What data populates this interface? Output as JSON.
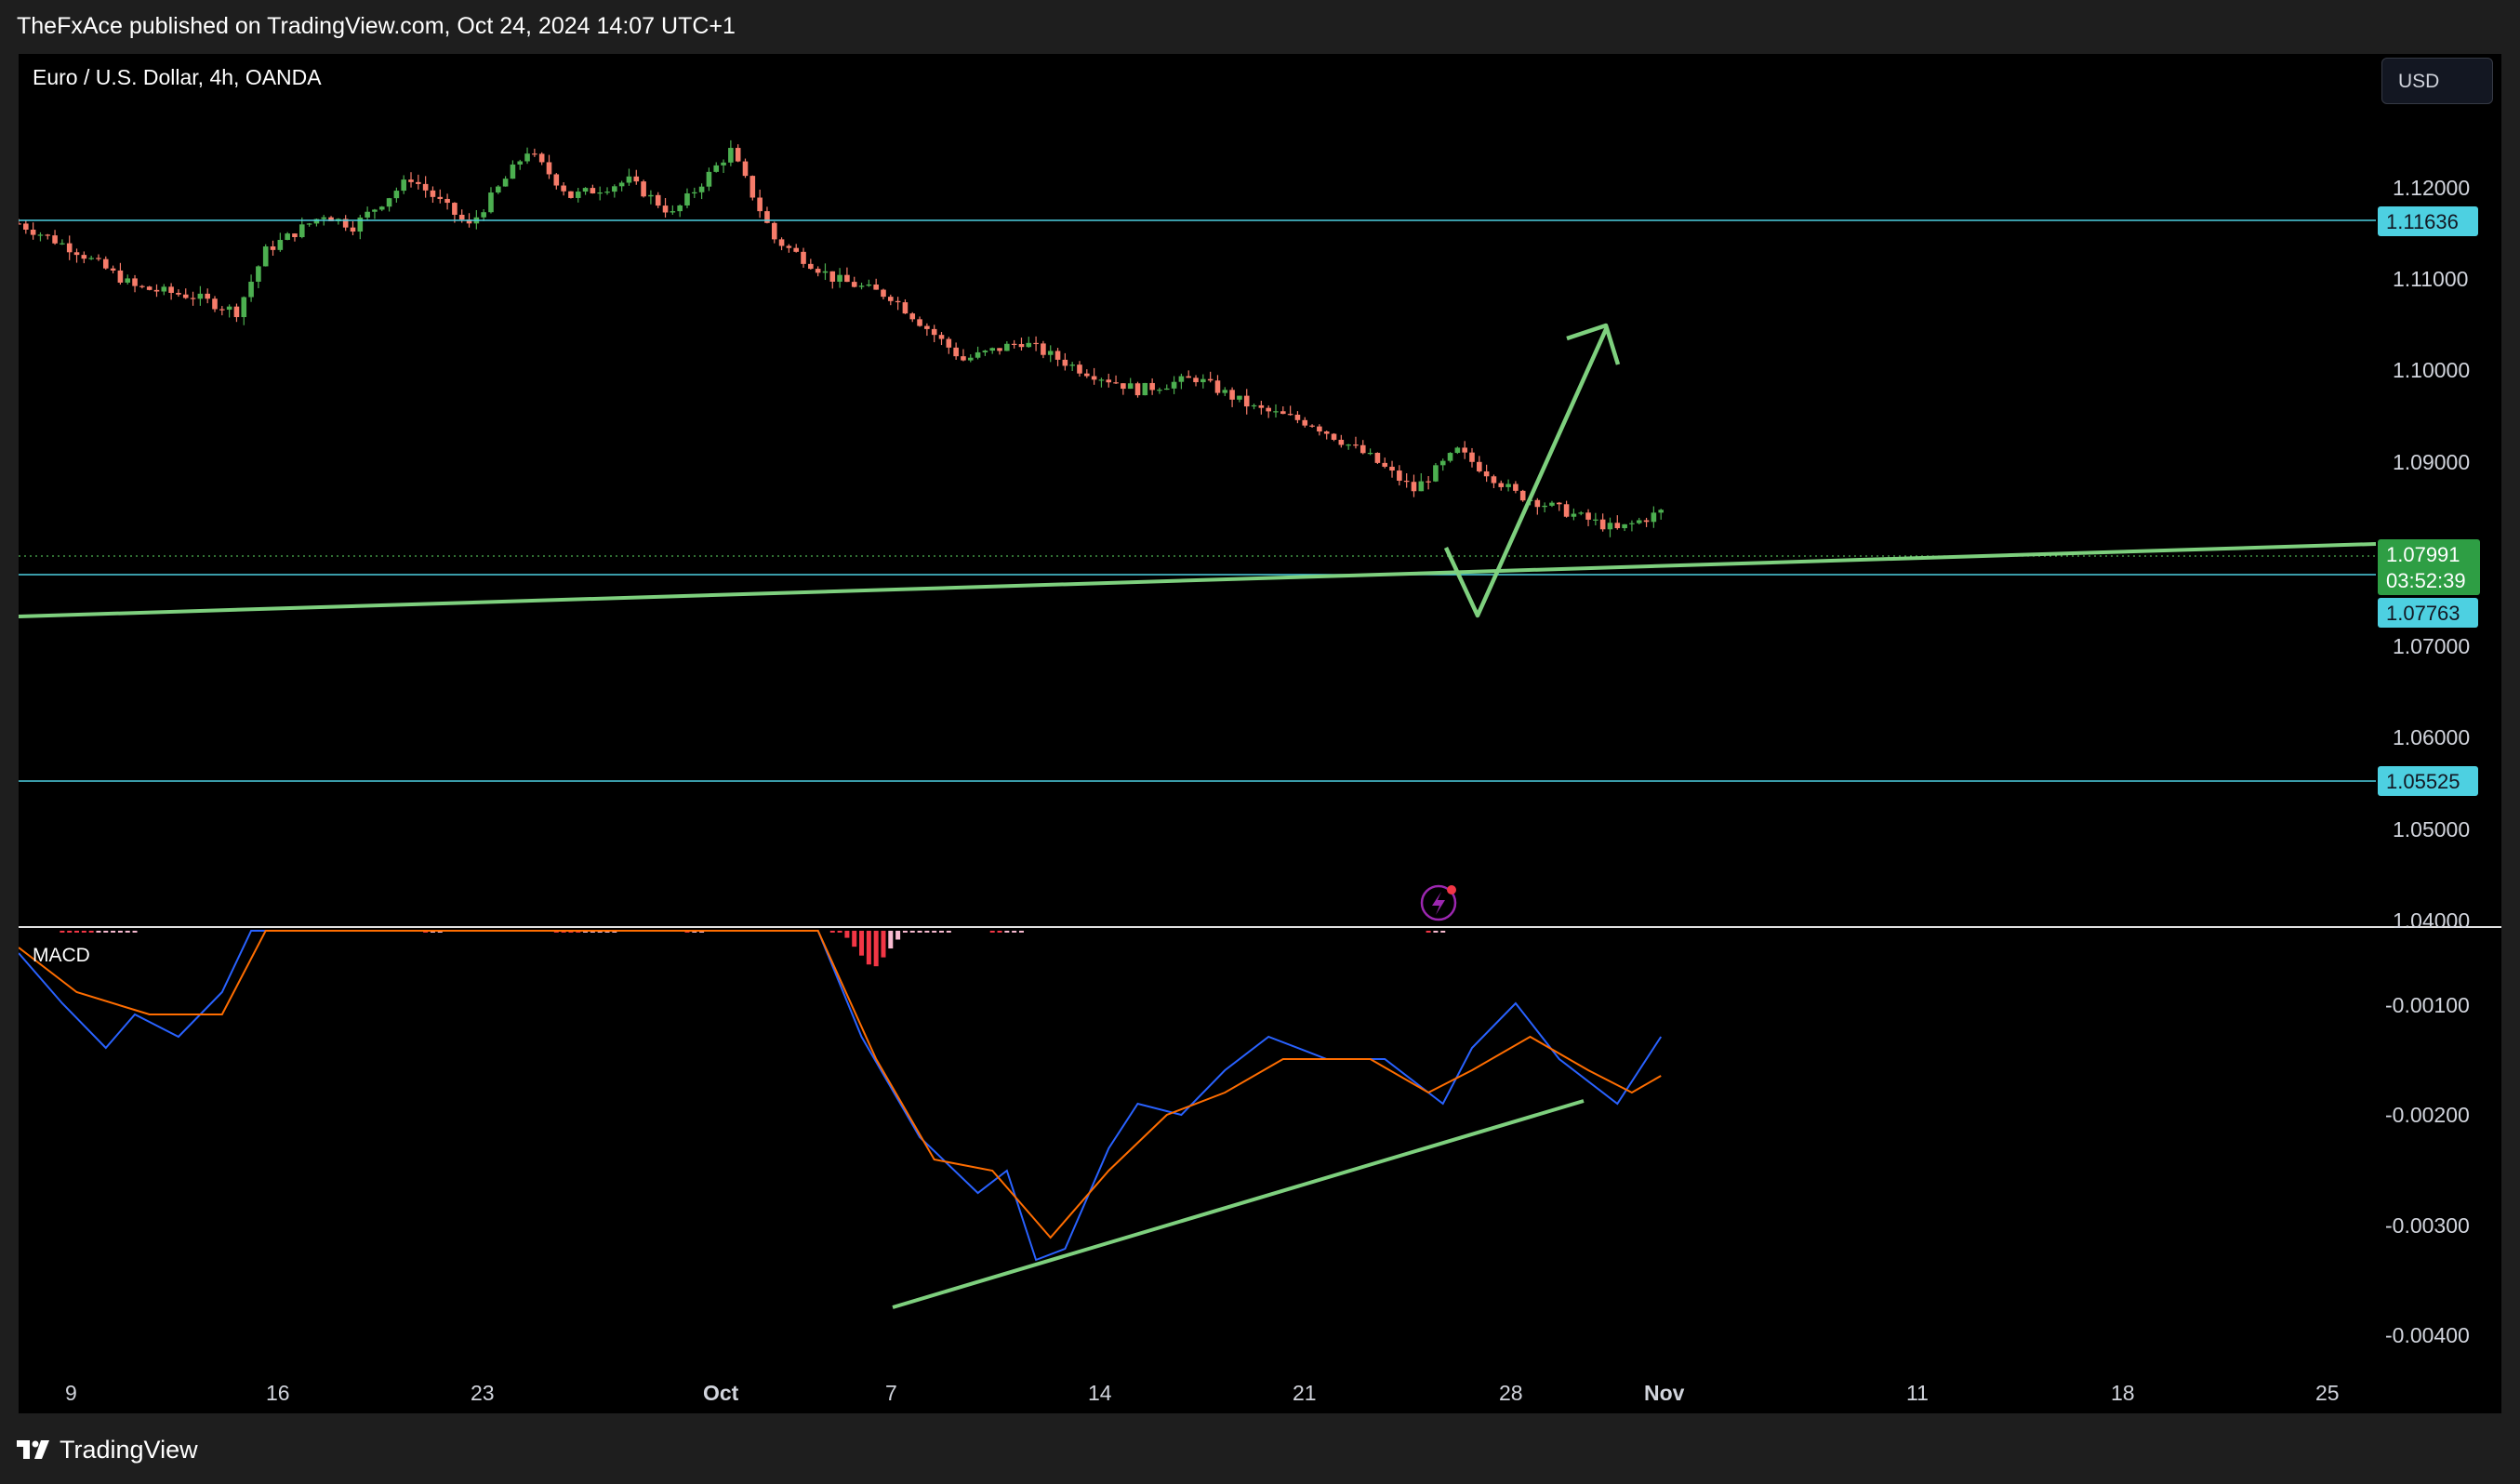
{
  "published": "TheFxAce published on TradingView.com, Oct 24, 2024 14:07 UTC+1",
  "symbol_title": "Euro / U.S. Dollar, 4h, OANDA",
  "currency": "USD",
  "macd_label": "MACD",
  "brand": "TradingView",
  "price_axis_labels": [
    "1.12000",
    "1.11000",
    "1.10000",
    "1.09000",
    "1.07000",
    "1.06000",
    "1.05000",
    "1.04000"
  ],
  "macd_axis_labels": [
    "-0.00100",
    "-0.00200",
    "-0.00300",
    "-0.00400"
  ],
  "time_axis_labels": [
    "9",
    "16",
    "23",
    "Oct",
    "7",
    "14",
    "21",
    "28",
    "Nov",
    "11",
    "18",
    "25"
  ],
  "levels": {
    "resistance": "1.11636",
    "support_1": "1.07763",
    "support_2": "1.05525"
  },
  "current_price": {
    "value": "1.07991",
    "countdown": "03:52:39"
  },
  "colors": {
    "up_candle": "#4caf50",
    "down_candle": "#f77c6a",
    "level_line": "#4dd0e1",
    "trend_line": "#7ed07e",
    "macd_line": "#2962ff",
    "signal_line": "#ff6d00",
    "background": "#000000"
  },
  "icons": [
    "lightning-icon",
    "tradingview-logo-icon"
  ],
  "chart_data": {
    "type": "candlestick",
    "title": "Euro / U.S. Dollar, 4h, OANDA",
    "x_ticks": [
      "9",
      "16",
      "23",
      "Oct",
      "7",
      "14",
      "21",
      "28",
      "Nov",
      "11",
      "18",
      "25"
    ],
    "price_ylim": [
      1.04,
      1.124
    ],
    "price_trajectory": [
      [
        0,
        1.1115
      ],
      [
        4,
        1.1085
      ],
      [
        8,
        1.1045
      ],
      [
        12,
        1.1035
      ],
      [
        15,
        1.1018
      ],
      [
        17,
        1.1085
      ],
      [
        21,
        1.1125
      ],
      [
        23,
        1.1112
      ],
      [
        27,
        1.1165
      ],
      [
        31,
        1.1112
      ],
      [
        35,
        1.1195
      ],
      [
        38,
        1.1145
      ],
      [
        42,
        1.1162
      ],
      [
        45,
        1.1125
      ],
      [
        49,
        1.1195
      ],
      [
        52,
        1.1098
      ],
      [
        56,
        1.1055
      ],
      [
        60,
        1.1035
      ],
      [
        65,
        1.0965
      ],
      [
        69,
        1.0985
      ],
      [
        73,
        1.0955
      ],
      [
        77,
        1.0932
      ],
      [
        81,
        1.0945
      ],
      [
        85,
        1.0912
      ],
      [
        89,
        1.0895
      ],
      [
        93,
        1.0858
      ],
      [
        96,
        1.0822
      ],
      [
        99,
        1.0865
      ],
      [
        103,
        1.0818
      ],
      [
        107,
        1.0795
      ],
      [
        110,
        1.0778
      ],
      [
        113,
        1.0798
      ]
    ],
    "macd_ylim": [
      -0.0045,
      -0.00065
    ],
    "macd_line": [
      [
        0,
        -0.00085
      ],
      [
        3,
        -0.0013
      ],
      [
        6,
        -0.0017
      ],
      [
        8,
        -0.0014
      ],
      [
        11,
        -0.0016
      ],
      [
        14,
        -0.0012
      ],
      [
        16,
        -0.0006
      ],
      [
        55,
        -0.0006
      ],
      [
        58,
        -0.0016
      ],
      [
        62,
        -0.0025
      ],
      [
        66,
        -0.003
      ],
      [
        68,
        -0.0028
      ],
      [
        70,
        -0.0036
      ],
      [
        72,
        -0.0035
      ],
      [
        75,
        -0.0026
      ],
      [
        77,
        -0.0022
      ],
      [
        80,
        -0.0023
      ],
      [
        83,
        -0.0019
      ],
      [
        86,
        -0.0016
      ],
      [
        90,
        -0.0018
      ],
      [
        94,
        -0.0018
      ],
      [
        98,
        -0.0022
      ],
      [
        100,
        -0.0017
      ],
      [
        103,
        -0.0013
      ],
      [
        106,
        -0.0018
      ],
      [
        110,
        -0.0022
      ],
      [
        113,
        -0.0016
      ]
    ],
    "signal_line": [
      [
        0,
        -0.0008
      ],
      [
        4,
        -0.0012
      ],
      [
        9,
        -0.0014
      ],
      [
        14,
        -0.0014
      ],
      [
        17,
        -0.0006
      ],
      [
        55,
        -0.0006
      ],
      [
        59,
        -0.0018
      ],
      [
        63,
        -0.0027
      ],
      [
        67,
        -0.0028
      ],
      [
        71,
        -0.0034
      ],
      [
        75,
        -0.0028
      ],
      [
        79,
        -0.0023
      ],
      [
        83,
        -0.0021
      ],
      [
        87,
        -0.0018
      ],
      [
        93,
        -0.0018
      ],
      [
        97,
        -0.0021
      ],
      [
        100,
        -0.0019
      ],
      [
        104,
        -0.0016
      ],
      [
        108,
        -0.0019
      ],
      [
        111,
        -0.0021
      ],
      [
        113,
        -0.00195
      ]
    ],
    "histogram": [
      {
        "from": 3,
        "to": 8,
        "min": -0.00045,
        "max": -0.00015
      },
      {
        "from": 28,
        "to": 29,
        "min": -0.00025,
        "max": -0.00012
      },
      {
        "from": 37,
        "to": 41,
        "min": -0.0005,
        "max": -0.00015
      },
      {
        "from": 46,
        "to": 47,
        "min": -0.0001,
        "max": -5e-05
      },
      {
        "from": 56,
        "to": 64,
        "min": -0.001,
        "max": -0.00015
      },
      {
        "from": 67,
        "to": 69,
        "min": -0.0002,
        "max": -8e-05
      },
      {
        "from": 97,
        "to": 98,
        "min": -8e-05,
        "max": -4e-05
      }
    ]
  }
}
